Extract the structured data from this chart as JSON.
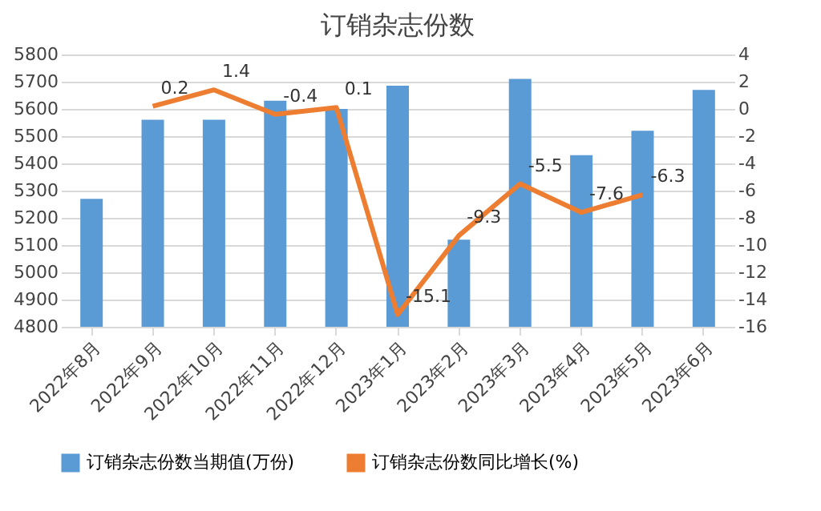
{
  "chart_data": {
    "type": "bar",
    "title": "订销杂志份数",
    "categories": [
      "2022年8月",
      "2022年9月",
      "2022年10月",
      "2022年11月",
      "2022年12月",
      "2023年1月",
      "2023年2月",
      "2023年3月",
      "2023年4月",
      "2023年5月",
      "2023年6月"
    ],
    "series": [
      {
        "name": "订销杂志份数当期值(万份)",
        "color": "#5b9bd5",
        "values": [
          5270,
          5560,
          5560,
          5630,
          5600,
          5685,
          5120,
          5710,
          5430,
          5520,
          5670
        ]
      },
      {
        "name": "订销杂志份数同比增长(%)",
        "type": "line",
        "axis": "y2",
        "color": "#ed7d31",
        "values": [
          null,
          0.2,
          1.4,
          -0.4,
          0.1,
          -15.1,
          -9.3,
          -5.5,
          -7.6,
          -6.3,
          null
        ],
        "value_labels": [
          null,
          "0.2",
          "1.4",
          "-0.4",
          "0.1",
          "-15.1",
          "-9.3",
          "-5.5",
          "-7.6",
          "-6.3",
          null
        ]
      }
    ],
    "ylim": [
      4800,
      5800
    ],
    "yticks": [
      4800,
      4900,
      5000,
      5100,
      5200,
      5300,
      5400,
      5500,
      5600,
      5700,
      5800
    ],
    "y2lim": [
      -16,
      4
    ],
    "y2ticks": [
      -16,
      -14,
      -12,
      -10,
      -8,
      -6,
      -4,
      -2,
      0,
      2,
      4
    ],
    "grid": "y",
    "legend": "bottom",
    "marker": "none",
    "line_style": "solid"
  }
}
